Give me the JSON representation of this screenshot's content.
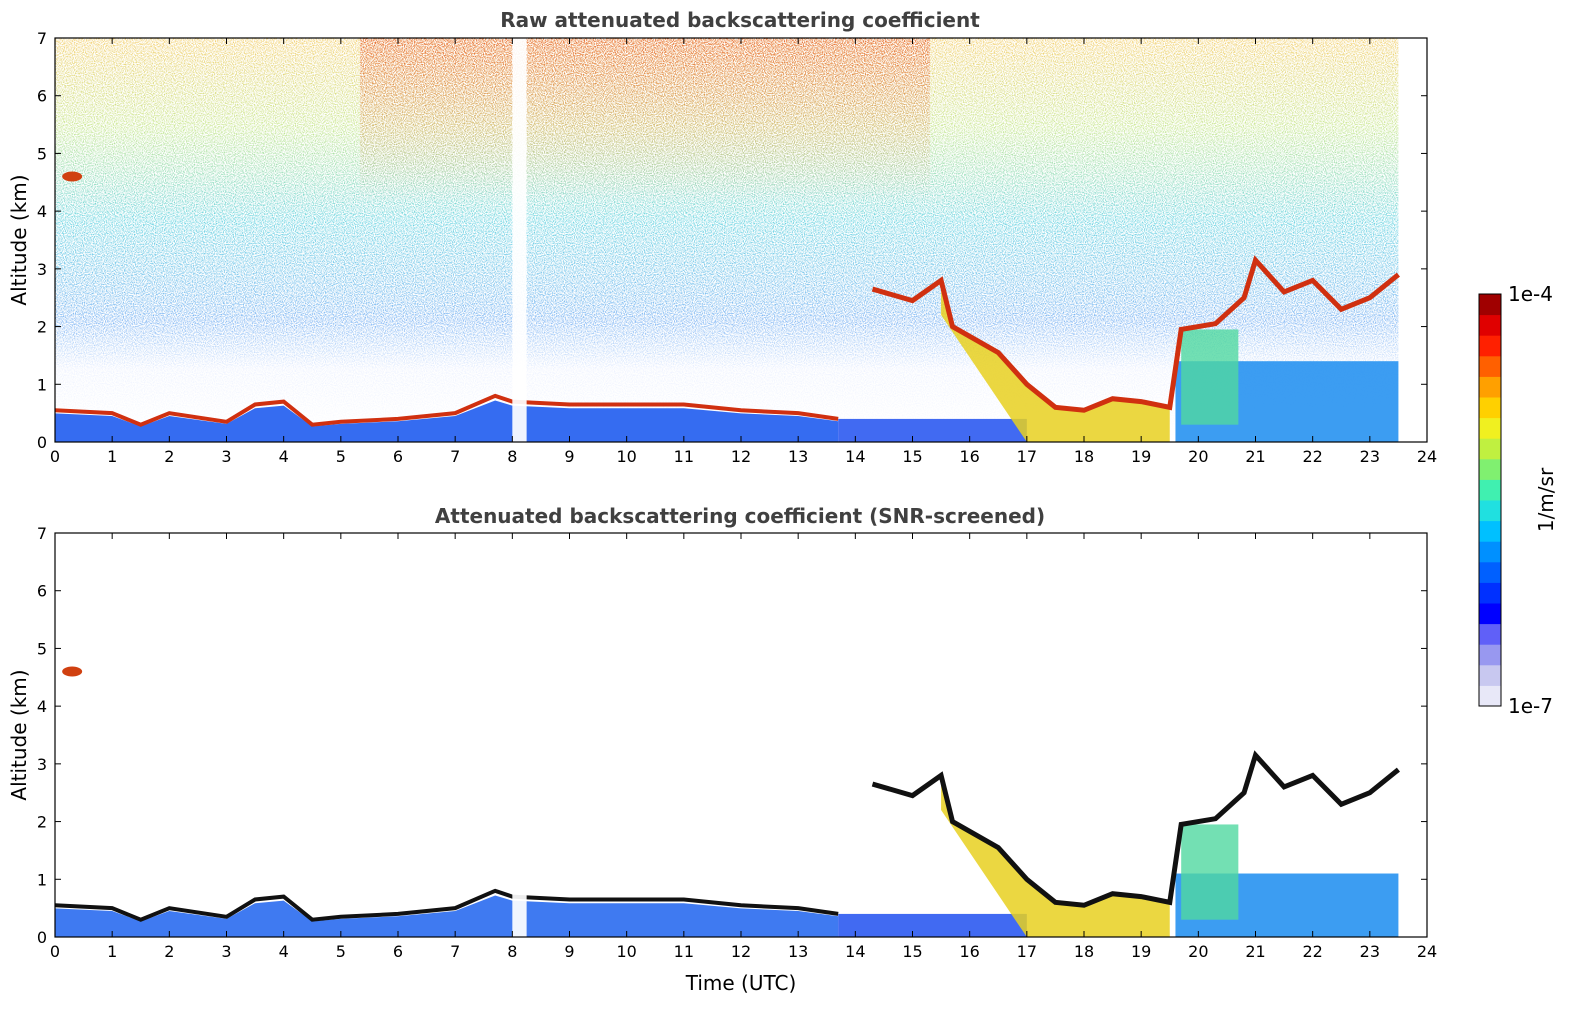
{
  "chart_data": [
    {
      "type": "heatmap",
      "title": "Raw attenuated backscattering coefficient",
      "xlabel": "",
      "ylabel": "Altitude (km)",
      "xlim": [
        0,
        24
      ],
      "ylim": [
        0,
        7
      ],
      "xticks": [
        "0",
        "1",
        "2",
        "3",
        "4",
        "5",
        "6",
        "7",
        "8",
        "9",
        "10",
        "11",
        "12",
        "13",
        "14",
        "15",
        "16",
        "17",
        "18",
        "19",
        "20",
        "21",
        "22",
        "23",
        "24"
      ],
      "yticks": [
        "0",
        "1",
        "2",
        "3",
        "4",
        "5",
        "6",
        "7"
      ],
      "data_end_hour": 23.5,
      "features": {
        "boundary_layer_top_km": [
          [
            0,
            0.55
          ],
          [
            1,
            0.5
          ],
          [
            1.5,
            0.3
          ],
          [
            2,
            0.5
          ],
          [
            3,
            0.35
          ],
          [
            3.5,
            0.65
          ],
          [
            4,
            0.7
          ],
          [
            4.5,
            0.3
          ],
          [
            5,
            0.35
          ],
          [
            6,
            0.4
          ],
          [
            7,
            0.5
          ],
          [
            7.7,
            0.8
          ],
          [
            8,
            0.7
          ],
          [
            9,
            0.65
          ],
          [
            10,
            0.65
          ],
          [
            11,
            0.65
          ],
          [
            12,
            0.55
          ],
          [
            13,
            0.5
          ],
          [
            13.7,
            0.4
          ]
        ],
        "elevated_layer_km": [
          [
            14.3,
            2.65
          ],
          [
            15,
            2.45
          ],
          [
            15.5,
            2.8
          ],
          [
            15.7,
            2.0
          ],
          [
            16.5,
            1.55
          ],
          [
            17,
            1.0
          ],
          [
            17.5,
            0.6
          ],
          [
            18,
            0.55
          ],
          [
            18.5,
            0.75
          ],
          [
            19,
            0.7
          ],
          [
            19.5,
            0.6
          ],
          [
            19.7,
            1.95
          ],
          [
            20.3,
            2.05
          ],
          [
            20.8,
            2.5
          ],
          [
            21,
            3.15
          ],
          [
            21.5,
            2.6
          ],
          [
            22,
            2.8
          ],
          [
            22.5,
            2.3
          ],
          [
            23,
            2.5
          ],
          [
            23.5,
            2.9
          ]
        ],
        "isolated_cloud": {
          "hour": 0.3,
          "alt_km": 4.6
        },
        "no_data_hours": [
          [
            8.0,
            8.25
          ]
        ]
      }
    },
    {
      "type": "heatmap",
      "title": "Attenuated backscattering coefficient (SNR-screened)",
      "xlabel": "Time (UTC)",
      "ylabel": "Altitude (km)",
      "xlim": [
        0,
        24
      ],
      "ylim": [
        0,
        7
      ],
      "xticks": [
        "0",
        "1",
        "2",
        "3",
        "4",
        "5",
        "6",
        "7",
        "8",
        "9",
        "10",
        "11",
        "12",
        "13",
        "14",
        "15",
        "16",
        "17",
        "18",
        "19",
        "20",
        "21",
        "22",
        "23",
        "24"
      ],
      "yticks": [
        "0",
        "1",
        "2",
        "3",
        "4",
        "5",
        "6",
        "7"
      ],
      "data_end_hour": 23.5
    }
  ],
  "colorbar": {
    "label": "1/m/sr",
    "min_label": "1e-7",
    "max_label": "1e-4",
    "colors": [
      "#e8e8f8",
      "#c8c8f0",
      "#9898f0",
      "#6060f8",
      "#0000ff",
      "#0030ff",
      "#0060ff",
      "#0090ff",
      "#00c0ff",
      "#20e0e0",
      "#40f0b0",
      "#80f070",
      "#c0f040",
      "#f0f020",
      "#ffd000",
      "#ffa000",
      "#ff6000",
      "#ff2000",
      "#e00000",
      "#a00000"
    ]
  }
}
